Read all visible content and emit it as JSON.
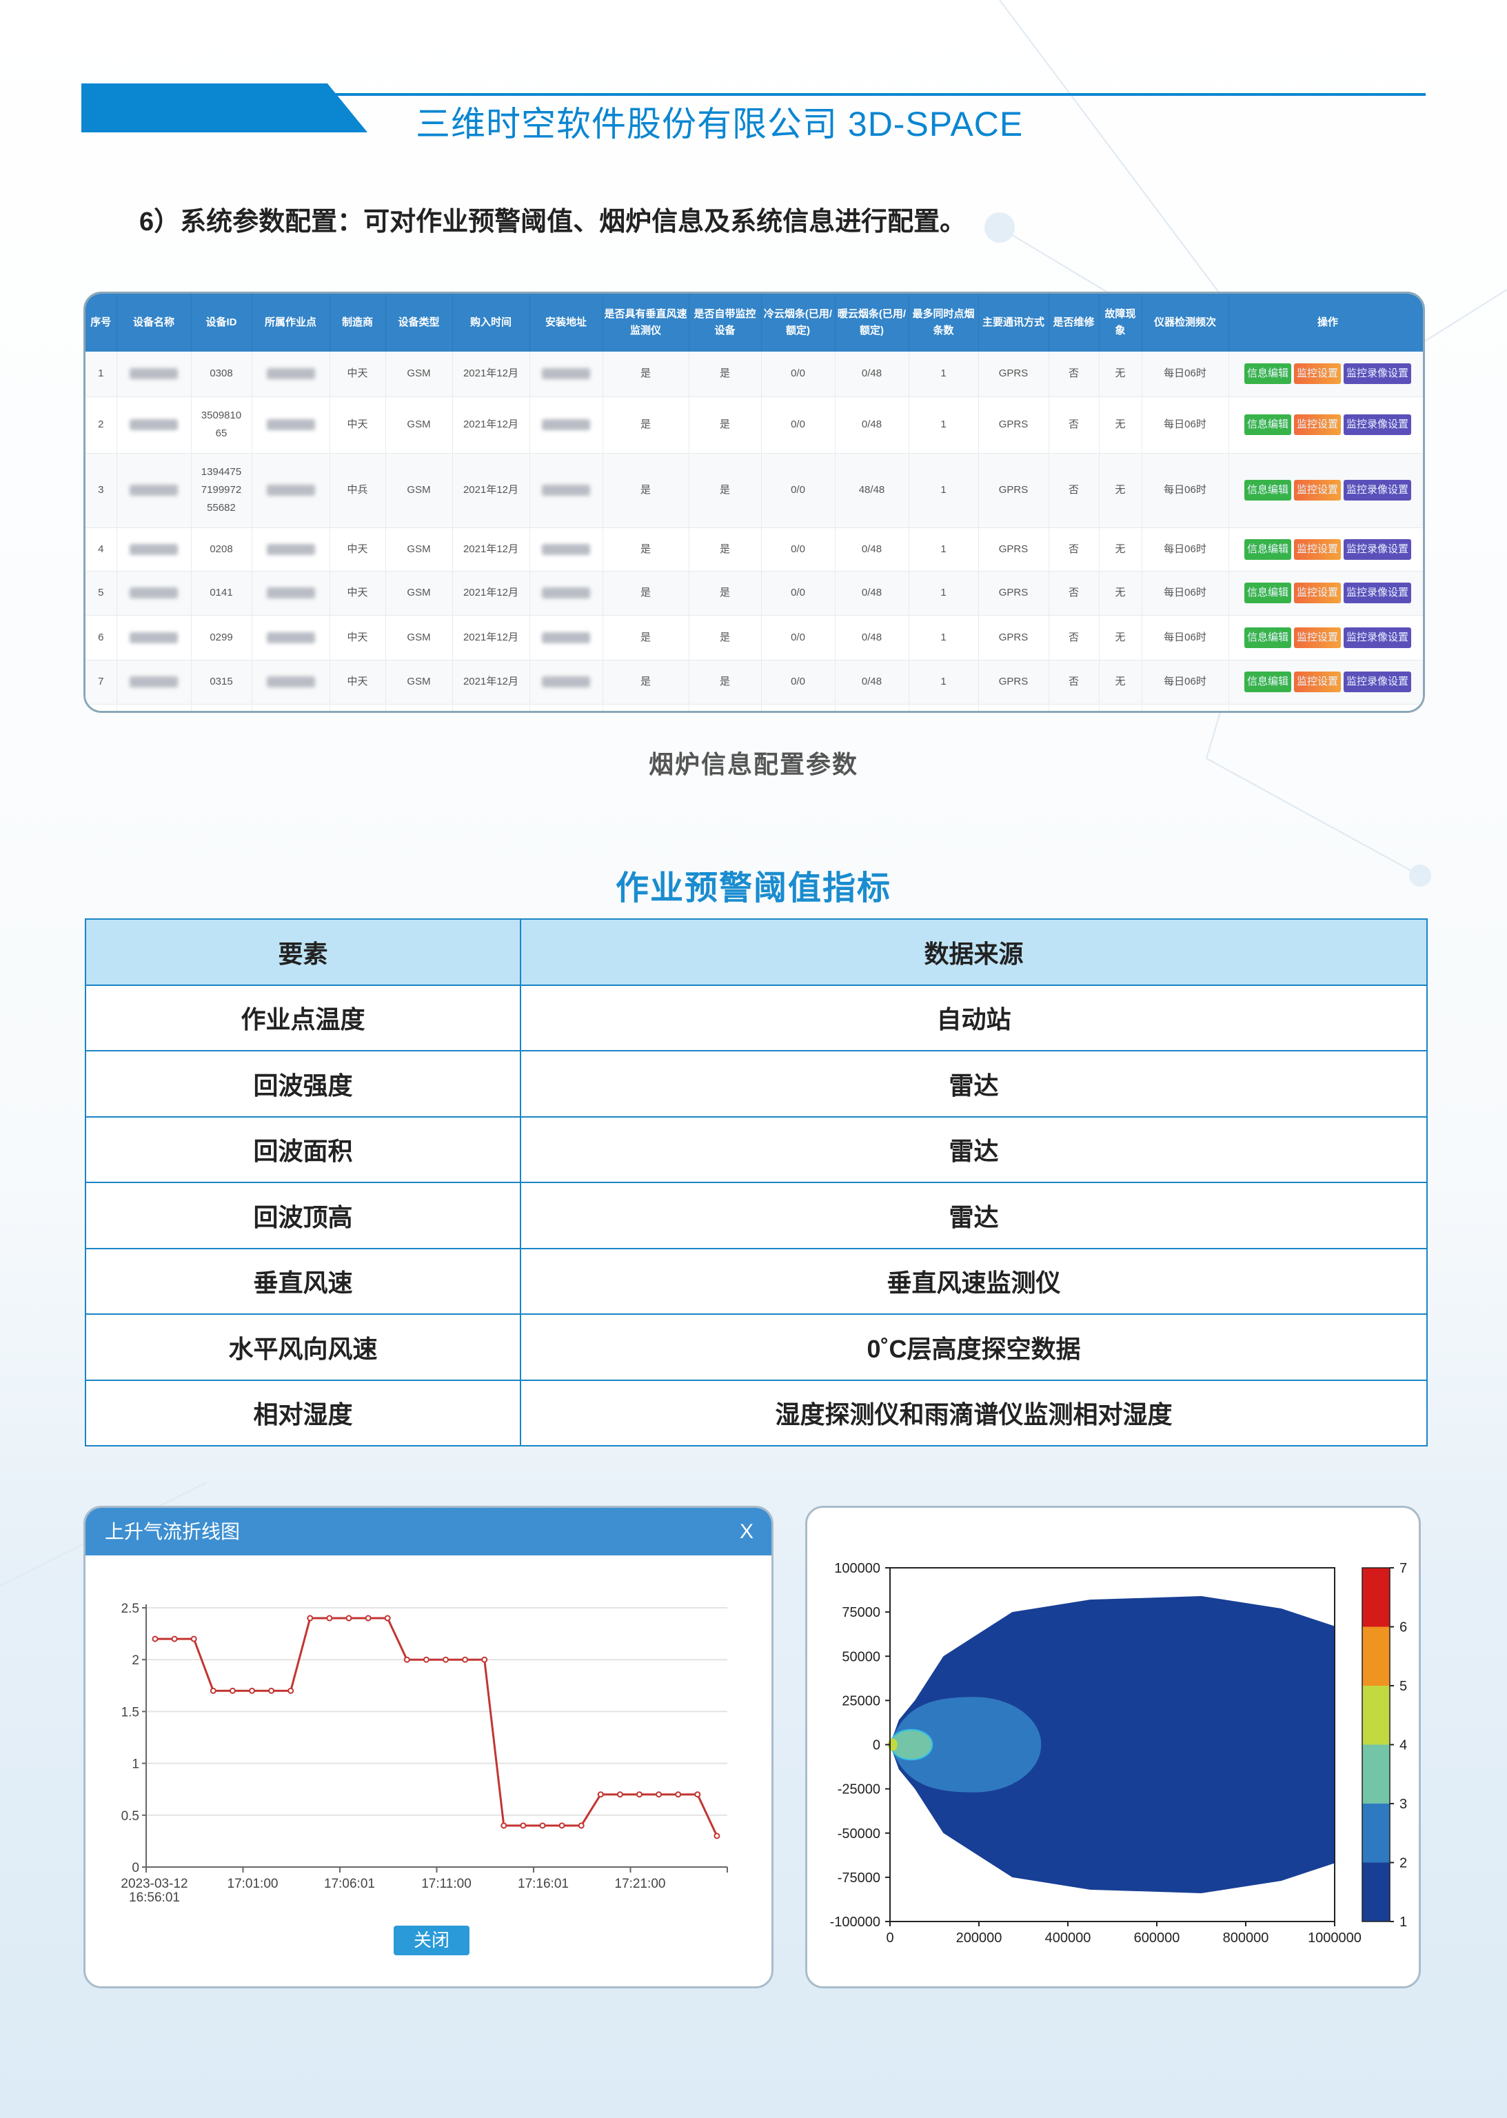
{
  "header": {
    "title": "三维时空软件股份有限公司  3D-SPACE",
    "accent": "#0b86d1"
  },
  "section_title": "6）系统参数配置：可对作业预警阈值、烟炉信息及系统信息进行配置。",
  "device_table": {
    "columns": [
      "序号",
      "设备名称",
      "设备ID",
      "所属作业点",
      "制造商",
      "设备类型",
      "购入时间",
      "安装地址",
      "是否具有垂直风速监测仪",
      "是否自带监控设备",
      "冷云烟条(已用/额定)",
      "暖云烟条(已用/额定)",
      "最多同时点烟条数",
      "主要通讯方式",
      "是否维修",
      "故障现象",
      "仪器检测频次",
      "操作"
    ],
    "rows": [
      {
        "no": "1",
        "id": "0308",
        "maker": "中天",
        "type": "GSM",
        "bought": "2021年12月",
        "vws": "是",
        "mon": "是",
        "cold": "0/0",
        "warm": "0/48",
        "max": "1",
        "comm": "GPRS",
        "repair": "否",
        "fault": "无",
        "freq": "每日06时"
      },
      {
        "no": "2",
        "id": "350981065",
        "maker": "中天",
        "type": "GSM",
        "bought": "2021年12月",
        "vws": "是",
        "mon": "是",
        "cold": "0/0",
        "warm": "0/48",
        "max": "1",
        "comm": "GPRS",
        "repair": "否",
        "fault": "无",
        "freq": "每日06时"
      },
      {
        "no": "3",
        "id": "1394475719997255682",
        "maker": "中兵",
        "type": "GSM",
        "bought": "2021年12月",
        "vws": "是",
        "mon": "是",
        "cold": "0/0",
        "warm": "48/48",
        "max": "1",
        "comm": "GPRS",
        "repair": "否",
        "fault": "无",
        "freq": "每日06时"
      },
      {
        "no": "4",
        "id": "0208",
        "maker": "中天",
        "type": "GSM",
        "bought": "2021年12月",
        "vws": "是",
        "mon": "是",
        "cold": "0/0",
        "warm": "0/48",
        "max": "1",
        "comm": "GPRS",
        "repair": "否",
        "fault": "无",
        "freq": "每日06时"
      },
      {
        "no": "5",
        "id": "0141",
        "maker": "中天",
        "type": "GSM",
        "bought": "2021年12月",
        "vws": "是",
        "mon": "是",
        "cold": "0/0",
        "warm": "0/48",
        "max": "1",
        "comm": "GPRS",
        "repair": "否",
        "fault": "无",
        "freq": "每日06时"
      },
      {
        "no": "6",
        "id": "0299",
        "maker": "中天",
        "type": "GSM",
        "bought": "2021年12月",
        "vws": "是",
        "mon": "是",
        "cold": "0/0",
        "warm": "0/48",
        "max": "1",
        "comm": "GPRS",
        "repair": "否",
        "fault": "无",
        "freq": "每日06时"
      },
      {
        "no": "7",
        "id": "0315",
        "maker": "中天",
        "type": "GSM",
        "bought": "2021年12月",
        "vws": "是",
        "mon": "是",
        "cold": "0/0",
        "warm": "0/48",
        "max": "1",
        "comm": "GPRS",
        "repair": "否",
        "fault": "无",
        "freq": "每日06时"
      }
    ],
    "actions": [
      "信息编辑",
      "监控设置",
      "监控录像设置"
    ],
    "caption": "烟炉信息配置参数"
  },
  "threshold_table": {
    "title": "作业预警阈值指标",
    "headers": [
      "要素",
      "数据来源"
    ],
    "rows": [
      [
        "作业点温度",
        "自动站"
      ],
      [
        "回波强度",
        "雷达"
      ],
      [
        "回波面积",
        "雷达"
      ],
      [
        "回波顶高",
        "雷达"
      ],
      [
        "垂直风速",
        "垂直风速监测仪"
      ],
      [
        "水平风向风速",
        "0˚C层高度探空数据"
      ],
      [
        "相对湿度",
        "湿度探测仪和雨滴谱仪监测相对湿度"
      ]
    ]
  },
  "dialog": {
    "title": "上升气流折线图",
    "close_x": "X",
    "close_button": "关闭"
  },
  "chart_data": [
    {
      "type": "line",
      "title": "上升气流折线图",
      "x_tick_labels": [
        "2023-03-12 16:56:01",
        "17:01:00",
        "17:06:01",
        "17:11:00",
        "17:16:01",
        "17:21:00"
      ],
      "values": [
        2.2,
        2.2,
        2.2,
        1.7,
        1.7,
        1.7,
        1.7,
        1.7,
        2.4,
        2.4,
        2.4,
        2.4,
        2.4,
        2.0,
        2.0,
        2.0,
        2.0,
        2.0,
        0.4,
        0.4,
        0.4,
        0.4,
        0.4,
        0.7,
        0.7,
        0.7,
        0.7,
        0.7,
        0.7,
        0.3
      ],
      "y_ticks": [
        "0",
        "0.5",
        "1",
        "1.5",
        "2",
        "2.5"
      ],
      "ylim": [
        0,
        2.5
      ],
      "grid": true,
      "color": "#c23531"
    },
    {
      "type": "heatmap",
      "x_ticks": [
        "0",
        "200000",
        "400000",
        "600000",
        "800000",
        "1000000"
      ],
      "y_ticks": [
        "100000",
        "75000",
        "50000",
        "25000",
        "0",
        "-25000",
        "-50000",
        "-75000",
        "-100000"
      ],
      "xlim": [
        0,
        1000000
      ],
      "ylim": [
        -100000,
        100000
      ],
      "colorbar_ticks": [
        "1",
        "2",
        "3",
        "4",
        "5",
        "6",
        "7"
      ],
      "levels": [
        {
          "range": [
            1,
            2
          ],
          "color": "#183f96"
        },
        {
          "range": [
            2,
            3
          ],
          "color": "#2f79c0"
        },
        {
          "range": [
            3,
            4
          ],
          "color": "#74c4a8"
        },
        {
          "range": [
            4,
            5
          ],
          "color": "#c2d941"
        },
        {
          "range": [
            5,
            6
          ],
          "color": "#ef9420"
        },
        {
          "range": [
            6,
            7
          ],
          "color": "#d51a1a"
        }
      ]
    }
  ]
}
